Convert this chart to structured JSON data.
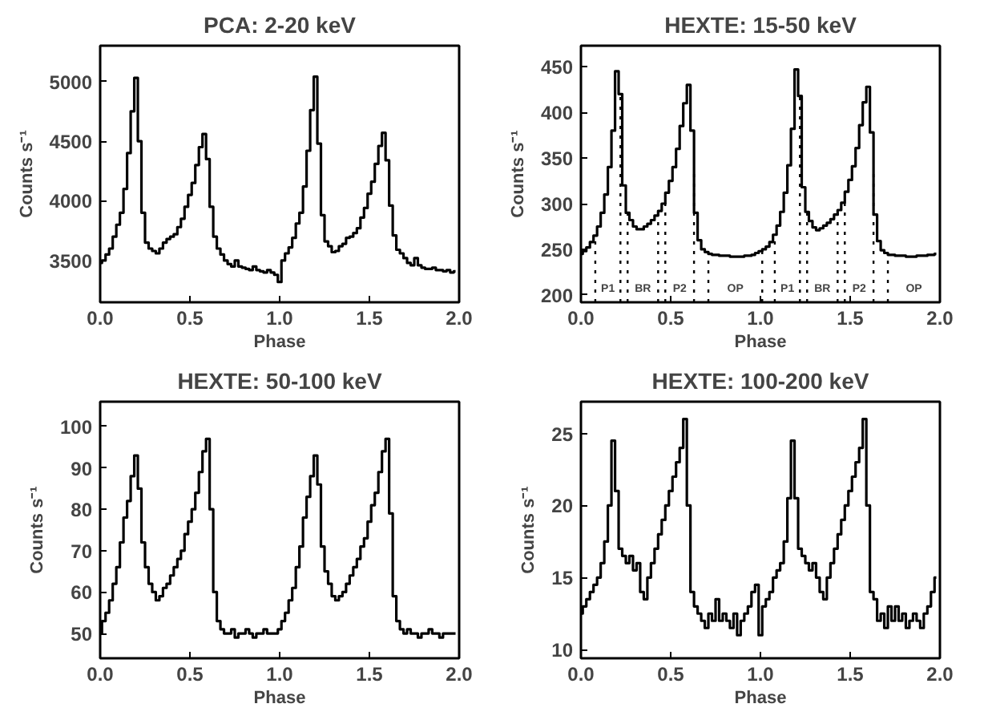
{
  "chart_data": [
    {
      "type": "step",
      "title": "PCA: 2-20 keV",
      "xlabel": "Phase",
      "ylabel": "Counts s⁻¹",
      "xlim": [
        0,
        2
      ],
      "ylim": [
        3150,
        5300
      ],
      "xticks": [
        {
          "value": 0,
          "label": "0.0"
        },
        {
          "value": 0.5,
          "label": "0.5"
        },
        {
          "value": 1,
          "label": "1.0"
        },
        {
          "value": 1.5,
          "label": "1.5"
        },
        {
          "value": 2,
          "label": "2.0"
        }
      ],
      "yticks": [
        3500,
        4000,
        4500,
        5000
      ],
      "grid": false,
      "line_style": "solid",
      "series": [
        {
          "color": "#000000",
          "x": [
            0,
            0.02,
            0.04,
            0.06,
            0.08,
            0.1,
            0.12,
            0.14,
            0.16,
            0.18,
            0.2,
            0.22,
            0.24,
            0.26,
            0.28,
            0.3,
            0.32,
            0.34,
            0.36,
            0.38,
            0.4,
            0.42,
            0.44,
            0.46,
            0.48,
            0.5,
            0.52,
            0.54,
            0.56,
            0.58,
            0.6,
            0.62,
            0.64,
            0.66,
            0.68,
            0.7,
            0.72,
            0.74,
            0.76,
            0.78,
            0.8,
            0.82,
            0.84,
            0.86,
            0.88,
            0.9,
            0.92,
            0.94,
            0.96,
            0.98,
            1,
            1.02,
            1.04,
            1.06,
            1.08,
            1.1,
            1.12,
            1.14,
            1.16,
            1.18,
            1.2,
            1.22,
            1.24,
            1.26,
            1.28,
            1.3,
            1.32,
            1.34,
            1.36,
            1.38,
            1.4,
            1.42,
            1.44,
            1.46,
            1.48,
            1.5,
            1.52,
            1.54,
            1.56,
            1.58,
            1.6,
            1.62,
            1.64,
            1.66,
            1.68,
            1.7,
            1.72,
            1.74,
            1.76,
            1.78,
            1.8,
            1.82,
            1.84,
            1.86,
            1.88,
            1.9,
            1.92,
            1.94,
            1.96,
            1.98
          ],
          "values": [
            3480,
            3500,
            3550,
            3600,
            3700,
            3800,
            3900,
            4100,
            4400,
            4750,
            5030,
            4500,
            3900,
            3650,
            3600,
            3580,
            3560,
            3600,
            3650,
            3680,
            3700,
            3720,
            3780,
            3850,
            3950,
            4050,
            4150,
            4300,
            4450,
            4560,
            4350,
            3950,
            3700,
            3600,
            3550,
            3500,
            3470,
            3450,
            3500,
            3450,
            3440,
            3430,
            3420,
            3450,
            3420,
            3410,
            3400,
            3420,
            3400,
            3380,
            3320,
            3500,
            3560,
            3610,
            3690,
            3810,
            3900,
            4120,
            4420,
            4760,
            5040,
            4480,
            3880,
            3660,
            3620,
            3570,
            3580,
            3620,
            3640,
            3690,
            3700,
            3730,
            3770,
            3860,
            3940,
            4060,
            4160,
            4310,
            4460,
            4570,
            4340,
            3960,
            3710,
            3590,
            3560,
            3520,
            3480,
            3460,
            3520,
            3460,
            3440,
            3430,
            3430,
            3440,
            3420,
            3420,
            3410,
            3420,
            3400,
            3410
          ]
        }
      ]
    },
    {
      "type": "step",
      "title": "HEXTE: 15-50 keV",
      "xlabel": "Phase",
      "ylabel": "Counts s⁻¹",
      "xlim": [
        0,
        2
      ],
      "ylim": [
        192,
        473
      ],
      "xticks": [
        {
          "value": 0,
          "label": "0.0"
        },
        {
          "value": 0.5,
          "label": "0.5"
        },
        {
          "value": 1,
          "label": "1.0"
        },
        {
          "value": 1.5,
          "label": "1.5"
        },
        {
          "value": 2,
          "label": "2.0"
        }
      ],
      "yticks": [
        200,
        250,
        300,
        350,
        400,
        450
      ],
      "grid": false,
      "line_style": "solid",
      "ref_lines": [
        {
          "axis": "x",
          "value": 0.08,
          "line_style": "dotted"
        },
        {
          "axis": "x",
          "value": 0.22,
          "line_style": "dotted"
        },
        {
          "axis": "x",
          "value": 0.26,
          "line_style": "dotted"
        },
        {
          "axis": "x",
          "value": 0.43,
          "line_style": "dotted"
        },
        {
          "axis": "x",
          "value": 0.47,
          "line_style": "dotted"
        },
        {
          "axis": "x",
          "value": 0.63,
          "line_style": "dotted"
        },
        {
          "axis": "x",
          "value": 0.71,
          "line_style": "dotted"
        },
        {
          "axis": "x",
          "value": 1.01,
          "line_style": "dotted"
        },
        {
          "axis": "x",
          "value": 1.08,
          "line_style": "dotted"
        },
        {
          "axis": "x",
          "value": 1.22,
          "line_style": "dotted"
        },
        {
          "axis": "x",
          "value": 1.26,
          "line_style": "dotted"
        },
        {
          "axis": "x",
          "value": 1.43,
          "line_style": "dotted"
        },
        {
          "axis": "x",
          "value": 1.47,
          "line_style": "dotted"
        },
        {
          "axis": "x",
          "value": 1.63,
          "line_style": "dotted"
        },
        {
          "axis": "x",
          "value": 1.71,
          "line_style": "dotted"
        }
      ],
      "annotations": [
        "P1",
        "BR",
        "P2",
        "OP",
        "P1",
        "BR",
        "P2",
        "OP"
      ],
      "series": [
        {
          "color": "#000000",
          "x": [
            0,
            0.02,
            0.04,
            0.06,
            0.08,
            0.1,
            0.12,
            0.14,
            0.16,
            0.18,
            0.2,
            0.22,
            0.24,
            0.26,
            0.28,
            0.3,
            0.32,
            0.34,
            0.36,
            0.38,
            0.4,
            0.42,
            0.44,
            0.46,
            0.48,
            0.5,
            0.52,
            0.54,
            0.56,
            0.58,
            0.6,
            0.62,
            0.64,
            0.66,
            0.68,
            0.7,
            0.72,
            0.74,
            0.76,
            0.78,
            0.8,
            0.82,
            0.84,
            0.86,
            0.88,
            0.9,
            0.92,
            0.94,
            0.96,
            0.98,
            1,
            1.02,
            1.04,
            1.06,
            1.08,
            1.1,
            1.12,
            1.14,
            1.16,
            1.18,
            1.2,
            1.22,
            1.24,
            1.26,
            1.28,
            1.3,
            1.32,
            1.34,
            1.36,
            1.38,
            1.4,
            1.42,
            1.44,
            1.46,
            1.48,
            1.5,
            1.52,
            1.54,
            1.56,
            1.58,
            1.6,
            1.62,
            1.64,
            1.66,
            1.68,
            1.7,
            1.72,
            1.74,
            1.76,
            1.78,
            1.8,
            1.82,
            1.84,
            1.86,
            1.88,
            1.9,
            1.92,
            1.94,
            1.96,
            1.98
          ],
          "values": [
            245,
            248,
            252,
            258,
            265,
            275,
            290,
            310,
            340,
            380,
            445,
            420,
            320,
            290,
            282,
            275,
            272,
            272,
            275,
            278,
            282,
            287,
            292,
            300,
            312,
            325,
            340,
            360,
            385,
            410,
            430,
            380,
            290,
            260,
            250,
            247,
            245,
            244,
            244,
            243,
            243,
            243,
            242,
            242,
            242,
            242,
            243,
            243,
            244,
            246,
            248,
            250,
            253,
            258,
            266,
            276,
            291,
            312,
            342,
            382,
            447,
            418,
            318,
            291,
            281,
            274,
            271,
            273,
            276,
            279,
            283,
            288,
            293,
            301,
            313,
            326,
            341,
            361,
            386,
            411,
            428,
            378,
            288,
            259,
            249,
            246,
            244,
            244,
            243,
            243,
            243,
            242,
            242,
            242,
            243,
            243,
            243,
            244,
            244,
            245
          ]
        }
      ]
    },
    {
      "type": "step",
      "title": "HEXTE: 50-100 keV",
      "xlabel": "Phase",
      "ylabel": "Counts s⁻¹",
      "xlim": [
        0,
        2
      ],
      "ylim": [
        44,
        106
      ],
      "xticks": [
        {
          "value": 0,
          "label": "0.0"
        },
        {
          "value": 0.5,
          "label": "0.5"
        },
        {
          "value": 1,
          "label": "1.0"
        },
        {
          "value": 1.5,
          "label": "1.5"
        },
        {
          "value": 2,
          "label": "2.0"
        }
      ],
      "yticks": [
        50,
        60,
        70,
        80,
        90,
        100
      ],
      "grid": false,
      "line_style": "solid",
      "series": [
        {
          "color": "#000000",
          "x": [
            0,
            0.02,
            0.04,
            0.06,
            0.08,
            0.1,
            0.12,
            0.14,
            0.16,
            0.18,
            0.2,
            0.22,
            0.24,
            0.26,
            0.28,
            0.3,
            0.32,
            0.34,
            0.36,
            0.38,
            0.4,
            0.42,
            0.44,
            0.46,
            0.48,
            0.5,
            0.52,
            0.54,
            0.56,
            0.58,
            0.6,
            0.62,
            0.64,
            0.66,
            0.68,
            0.7,
            0.72,
            0.74,
            0.76,
            0.78,
            0.8,
            0.82,
            0.84,
            0.86,
            0.88,
            0.9,
            0.92,
            0.94,
            0.96,
            0.98,
            1,
            1.02,
            1.04,
            1.06,
            1.08,
            1.1,
            1.12,
            1.14,
            1.16,
            1.18,
            1.2,
            1.22,
            1.24,
            1.26,
            1.28,
            1.3,
            1.32,
            1.34,
            1.36,
            1.38,
            1.4,
            1.42,
            1.44,
            1.46,
            1.48,
            1.5,
            1.52,
            1.54,
            1.56,
            1.58,
            1.6,
            1.62,
            1.64,
            1.66,
            1.68,
            1.7,
            1.72,
            1.74,
            1.76,
            1.78,
            1.8,
            1.82,
            1.84,
            1.86,
            1.88,
            1.9,
            1.92,
            1.94,
            1.96,
            1.98
          ],
          "values": [
            50,
            53,
            55,
            58,
            62,
            66,
            72,
            78,
            82,
            88,
            93,
            85,
            72,
            66,
            62,
            60,
            58,
            59,
            61,
            62,
            64,
            66,
            68,
            70,
            74,
            77,
            80,
            84,
            89,
            94,
            97,
            80,
            60,
            53,
            51,
            50,
            50,
            51,
            49,
            50,
            50,
            51,
            50,
            49,
            50,
            50,
            51,
            50,
            50,
            50,
            51,
            53,
            55,
            58,
            61,
            66,
            71,
            78,
            83,
            88,
            93,
            86,
            71,
            65,
            62,
            59,
            58,
            59,
            60,
            62,
            64,
            66,
            68,
            71,
            73,
            77,
            81,
            84,
            89,
            94,
            97,
            79,
            59,
            53,
            51,
            50,
            51,
            50,
            50,
            49,
            50,
            50,
            51,
            50,
            50,
            49,
            50,
            50,
            50,
            50
          ]
        }
      ]
    },
    {
      "type": "step",
      "title": "HEXTE: 100-200 keV",
      "xlabel": "Phase",
      "ylabel": "Counts s⁻¹",
      "xlim": [
        0,
        2
      ],
      "ylim": [
        9.4,
        27.2
      ],
      "xticks": [
        {
          "value": 0,
          "label": "0.0"
        },
        {
          "value": 0.5,
          "label": "0.5"
        },
        {
          "value": 1,
          "label": "1.0"
        },
        {
          "value": 1.5,
          "label": "1.5"
        },
        {
          "value": 2,
          "label": "2.0"
        }
      ],
      "yticks": [
        10,
        15,
        20,
        25
      ],
      "grid": false,
      "line_style": "solid",
      "series": [
        {
          "color": "#000000",
          "x": [
            0,
            0.02,
            0.04,
            0.06,
            0.08,
            0.1,
            0.12,
            0.14,
            0.16,
            0.18,
            0.2,
            0.22,
            0.24,
            0.26,
            0.28,
            0.3,
            0.32,
            0.34,
            0.36,
            0.38,
            0.4,
            0.42,
            0.44,
            0.46,
            0.48,
            0.5,
            0.52,
            0.54,
            0.56,
            0.58,
            0.6,
            0.62,
            0.64,
            0.66,
            0.68,
            0.7,
            0.72,
            0.74,
            0.76,
            0.78,
            0.8,
            0.82,
            0.84,
            0.86,
            0.88,
            0.9,
            0.92,
            0.94,
            0.96,
            0.98,
            1,
            1.02,
            1.04,
            1.06,
            1.08,
            1.1,
            1.12,
            1.14,
            1.16,
            1.18,
            1.2,
            1.22,
            1.24,
            1.26,
            1.28,
            1.3,
            1.32,
            1.34,
            1.36,
            1.38,
            1.4,
            1.42,
            1.44,
            1.46,
            1.48,
            1.5,
            1.52,
            1.54,
            1.56,
            1.58,
            1.6,
            1.62,
            1.64,
            1.66,
            1.68,
            1.7,
            1.72,
            1.74,
            1.76,
            1.78,
            1.8,
            1.82,
            1.84,
            1.86,
            1.88,
            1.9,
            1.92,
            1.94,
            1.96,
            1.98
          ],
          "values": [
            12.5,
            13,
            13.5,
            14,
            14.5,
            15,
            16,
            17.5,
            20,
            24.5,
            21,
            17,
            16.5,
            16,
            16.5,
            15.5,
            16,
            14,
            13.5,
            15,
            16,
            17,
            18,
            19,
            20,
            21,
            22,
            23,
            24,
            26,
            20,
            14,
            13,
            12.5,
            12,
            11.5,
            12.5,
            12,
            13.5,
            12,
            12.5,
            12,
            11.5,
            12.5,
            11,
            12,
            12.5,
            13,
            14,
            14.5,
            11,
            13,
            13.5,
            14,
            15,
            15.5,
            16,
            17.5,
            20.5,
            24.5,
            20.5,
            17,
            16.5,
            16,
            15.5,
            16,
            15,
            14,
            13.5,
            15,
            16,
            17,
            18,
            19,
            20,
            21,
            22,
            23,
            24,
            26,
            20,
            14,
            13.5,
            12,
            12.5,
            11.5,
            13,
            12,
            13,
            12,
            12.5,
            11.5,
            12,
            12.5,
            12,
            11.5,
            12.5,
            13,
            14,
            15
          ]
        }
      ]
    }
  ]
}
